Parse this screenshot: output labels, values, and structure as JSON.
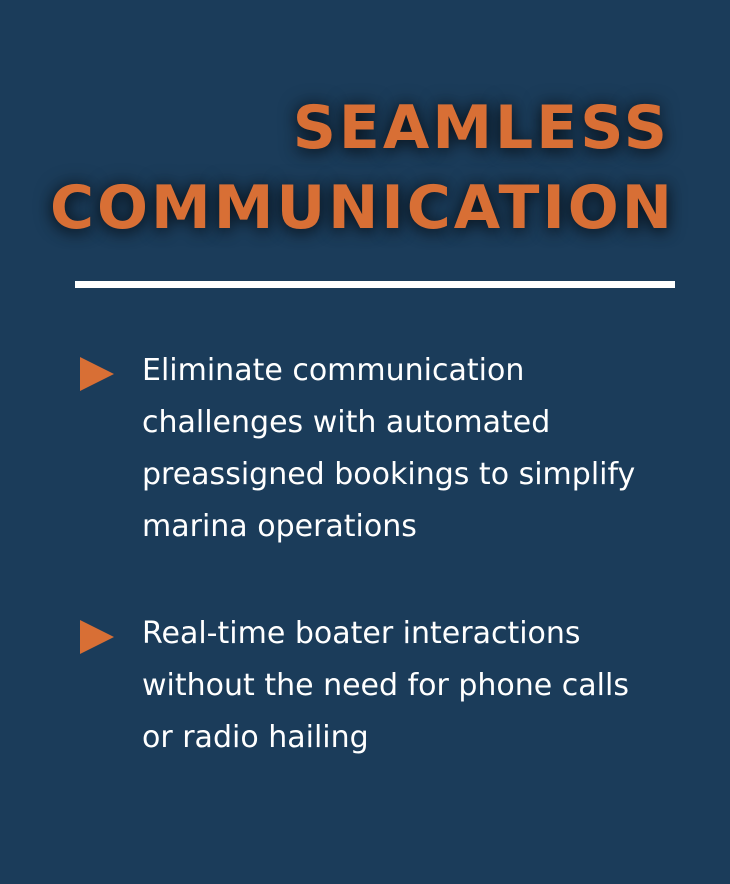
{
  "title": {
    "line1": "SEAMLESS",
    "line2": "COMMUNICATION"
  },
  "bullets": [
    {
      "icon": "triangle-arrow-right",
      "text": "Eliminate communication challenges with automated preassigned bookings to simplify marina operations"
    },
    {
      "icon": "triangle-arrow-right",
      "text": "Real-time boater interactions without the need for phone calls or radio hailing"
    }
  ],
  "colors": {
    "background": "#1b3c5a",
    "accent": "#d86f35",
    "text": "#ffffff"
  }
}
